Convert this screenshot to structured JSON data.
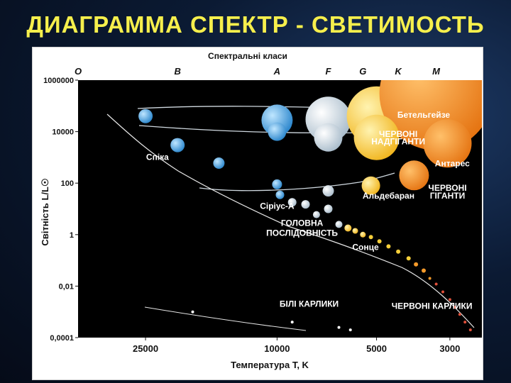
{
  "slide": {
    "title": "ДИАГРАММА СПЕКТР - СВЕТИМОСТЬ"
  },
  "colors": {
    "title": "#f6ef4c",
    "plot_bg": "#000000",
    "panel_bg": "#ffffff",
    "blue_star": "#4aa8e6",
    "white_star": "#d8e6f0",
    "yellow_star": "#f6cf3a",
    "orange_star": "#f59a2a",
    "red_dwarf": "#e0503a"
  },
  "chart_data": {
    "type": "scatter",
    "xlabel": "Температура T, K",
    "ylabel": "Світність L/L☉",
    "top_axis_label": "Спектральні класи",
    "spectral_classes": [
      {
        "label": "O",
        "t": 40000
      },
      {
        "label": "B",
        "t": 20000
      },
      {
        "label": "A",
        "t": 10000
      },
      {
        "label": "F",
        "t": 7000
      },
      {
        "label": "G",
        "t": 5500
      },
      {
        "label": "K",
        "t": 4300
      },
      {
        "label": "M",
        "t": 3300
      }
    ],
    "x_ticks": [
      {
        "label": "25000",
        "t": 25000
      },
      {
        "label": "10000",
        "t": 10000
      },
      {
        "label": "5000",
        "t": 5000
      },
      {
        "label": "3000",
        "t": 3000
      }
    ],
    "y_ticks": [
      {
        "label": "1000000",
        "v": 1000000
      },
      {
        "label": "10000",
        "v": 10000
      },
      {
        "label": "100",
        "v": 100
      },
      {
        "label": "1",
        "v": 1
      },
      {
        "label": "0,01",
        "v": 0.01
      },
      {
        "label": "0,0001",
        "v": 0.0001
      }
    ],
    "x_scale": "log, reversed",
    "y_scale": "log",
    "xlim": [
      40000,
      2400
    ],
    "ylim": [
      0.0001,
      1000000
    ],
    "labels": [
      {
        "text": "Бетельгейзе",
        "t": 3600,
        "v": 35000
      },
      {
        "text": "ЧЕРВОНІ",
        "t": 4300,
        "v": 6200
      },
      {
        "text": "НАДГІГАНТИ",
        "t": 4300,
        "v": 3200
      },
      {
        "text": "Антарес",
        "t": 2950,
        "v": 450
      },
      {
        "text": "Спіка",
        "t": 23000,
        "v": 800
      },
      {
        "text": "Сіріус-А",
        "t": 10000,
        "v": 10
      },
      {
        "text": "Альдебаран",
        "t": 4600,
        "v": 25
      },
      {
        "text": "ЧЕРВОНІ",
        "t": 3050,
        "v": 50
      },
      {
        "text": "ГІГАНТИ",
        "t": 3050,
        "v": 25
      },
      {
        "text": "ГОЛОВНА",
        "t": 8400,
        "v": 2.2
      },
      {
        "text": "ПОСЛІДОВНІСТЬ",
        "t": 8400,
        "v": 0.9
      },
      {
        "text": "Сонце",
        "t": 5400,
        "v": 0.25
      },
      {
        "text": "БІЛІ КАРЛИКИ",
        "t": 8000,
        "v": 0.0016
      },
      {
        "text": "ЧЕРВОНІ КАРЛИКИ",
        "t": 3400,
        "v": 0.0013
      }
    ],
    "series": [
      {
        "name": "ЧЕРВОНІ НАДГІГАНТИ",
        "points": [
          {
            "t": 10000,
            "v": 28000,
            "r": 22,
            "color": "#4aa8e6"
          },
          {
            "t": 7000,
            "v": 30000,
            "r": 32,
            "color": "#d8e6f0"
          },
          {
            "t": 5000,
            "v": 40000,
            "r": 42,
            "color": "#f6cf3a"
          },
          {
            "t": 3300,
            "v": 300000,
            "r": 80,
            "color": "#f59a2a"
          },
          {
            "t": 10000,
            "v": 10000,
            "r": 13,
            "color": "#4aa8e6"
          },
          {
            "t": 7000,
            "v": 6000,
            "r": 20,
            "color": "#d8e6f0"
          },
          {
            "t": 5000,
            "v": 6000,
            "r": 32,
            "color": "#f6cf3a"
          },
          {
            "t": 3050,
            "v": 3500,
            "r": 34,
            "color": "#f59a2a"
          }
        ]
      },
      {
        "name": "ЧЕРВОНІ ГІГАНТИ",
        "points": [
          {
            "t": 7000,
            "v": 50,
            "r": 8,
            "color": "#d8e6f0"
          },
          {
            "t": 5200,
            "v": 80,
            "r": 13,
            "color": "#f6cf3a"
          },
          {
            "t": 3850,
            "v": 200,
            "r": 21,
            "color": "#f59a2a"
          },
          {
            "t": 7000,
            "v": 10,
            "r": 6,
            "color": "#d8e6f0"
          }
        ]
      },
      {
        "name": "ГОЛОВНА ПОСЛІДОВНІСТЬ",
        "points": [
          {
            "t": 25000,
            "v": 40000,
            "r": 10,
            "color": "#4aa8e6"
          },
          {
            "t": 20000,
            "v": 3000,
            "r": 10,
            "color": "#4aa8e6"
          },
          {
            "t": 15000,
            "v": 600,
            "r": 8,
            "color": "#4aa8e6"
          },
          {
            "t": 10000,
            "v": 90,
            "r": 7,
            "color": "#4aa8e6"
          },
          {
            "t": 9800,
            "v": 35,
            "r": 6,
            "color": "#4aa8e6"
          },
          {
            "t": 9000,
            "v": 18,
            "r": 6,
            "color": "#d8e6f0"
          },
          {
            "t": 8200,
            "v": 15,
            "r": 6,
            "color": "#d8e6f0"
          },
          {
            "t": 7600,
            "v": 6,
            "r": 5,
            "color": "#d8e6f0"
          },
          {
            "t": 6500,
            "v": 2.5,
            "r": 5,
            "color": "#d8e6f0"
          },
          {
            "t": 6100,
            "v": 1.8,
            "r": 5,
            "color": "#f6cf3a"
          },
          {
            "t": 5800,
            "v": 1.4,
            "r": 4,
            "color": "#f6cf3a"
          },
          {
            "t": 5500,
            "v": 1.0,
            "r": 4,
            "color": "#f6cf3a"
          },
          {
            "t": 5200,
            "v": 0.8,
            "r": 3,
            "color": "#f6cf3a"
          },
          {
            "t": 4900,
            "v": 0.55,
            "r": 3,
            "color": "#f6cf3a"
          },
          {
            "t": 4600,
            "v": 0.35,
            "r": 3,
            "color": "#f6cf3a"
          },
          {
            "t": 4300,
            "v": 0.22,
            "r": 3,
            "color": "#f6cf3a"
          },
          {
            "t": 4000,
            "v": 0.12,
            "r": 3,
            "color": "#f6cf3a"
          },
          {
            "t": 3800,
            "v": 0.07,
            "r": 3,
            "color": "#f59a2a"
          },
          {
            "t": 3600,
            "v": 0.04,
            "r": 3,
            "color": "#f59a2a"
          },
          {
            "t": 3450,
            "v": 0.02,
            "r": 2,
            "color": "#f59a2a"
          },
          {
            "t": 3300,
            "v": 0.012,
            "r": 2,
            "color": "#e0503a"
          },
          {
            "t": 3150,
            "v": 0.006,
            "r": 2,
            "color": "#e0503a"
          },
          {
            "t": 3000,
            "v": 0.003,
            "r": 2,
            "color": "#e0503a"
          },
          {
            "t": 2900,
            "v": 0.0015,
            "r": 2,
            "color": "#e0503a"
          },
          {
            "t": 2800,
            "v": 0.0008,
            "r": 2,
            "color": "#e0503a"
          },
          {
            "t": 2700,
            "v": 0.0004,
            "r": 2,
            "color": "#e0503a"
          },
          {
            "t": 2600,
            "v": 0.0002,
            "r": 2,
            "color": "#e0503a"
          }
        ]
      },
      {
        "name": "БІЛІ КАРЛИКИ",
        "points": [
          {
            "t": 18000,
            "v": 0.001,
            "r": 2,
            "color": "#ffffff"
          },
          {
            "t": 9000,
            "v": 0.0004,
            "r": 2,
            "color": "#ffffff"
          },
          {
            "t": 6500,
            "v": 0.00025,
            "r": 2,
            "color": "#ffffff"
          },
          {
            "t": 6000,
            "v": 0.0002,
            "r": 2,
            "color": "#ffffff"
          }
        ]
      }
    ]
  }
}
